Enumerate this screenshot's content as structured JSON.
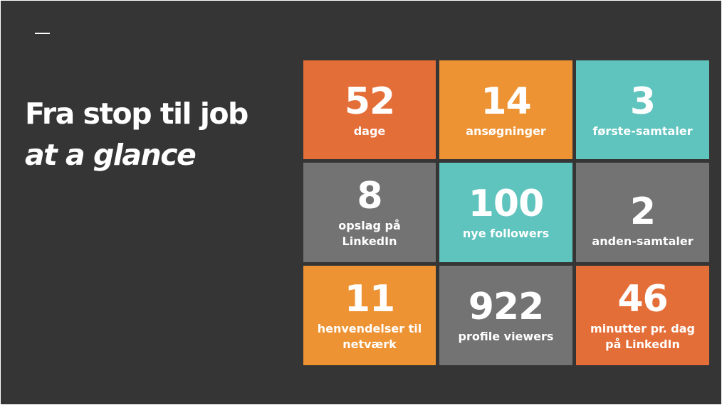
{
  "slide": {
    "dash": "—",
    "title_line1": "Fra stop til job",
    "title_line2": "at a glance"
  },
  "tiles": [
    {
      "value": "52",
      "label": "dage",
      "color": "#E46E38"
    },
    {
      "value": "14",
      "label": "ansøgninger",
      "color": "#EE9333"
    },
    {
      "value": "3",
      "label": "første-samtaler",
      "color": "#5FC3BE"
    },
    {
      "value": "8",
      "label": "opslag på LinkedIn",
      "color": "#737373"
    },
    {
      "value": "100",
      "label": "nye followers",
      "color": "#5FC3BE"
    },
    {
      "value": "2",
      "label": "anden-samtaler",
      "color": "#737373"
    },
    {
      "value": "11",
      "label": "henvendelser til netværk",
      "color": "#EE9333"
    },
    {
      "value": "922",
      "label": "profile viewers",
      "color": "#737373"
    },
    {
      "value": "46",
      "label": "minutter pr. dag på LinkedIn",
      "color": "#E46E38"
    }
  ],
  "colors": {
    "background": "#353535",
    "text": "#FFFFFF"
  }
}
